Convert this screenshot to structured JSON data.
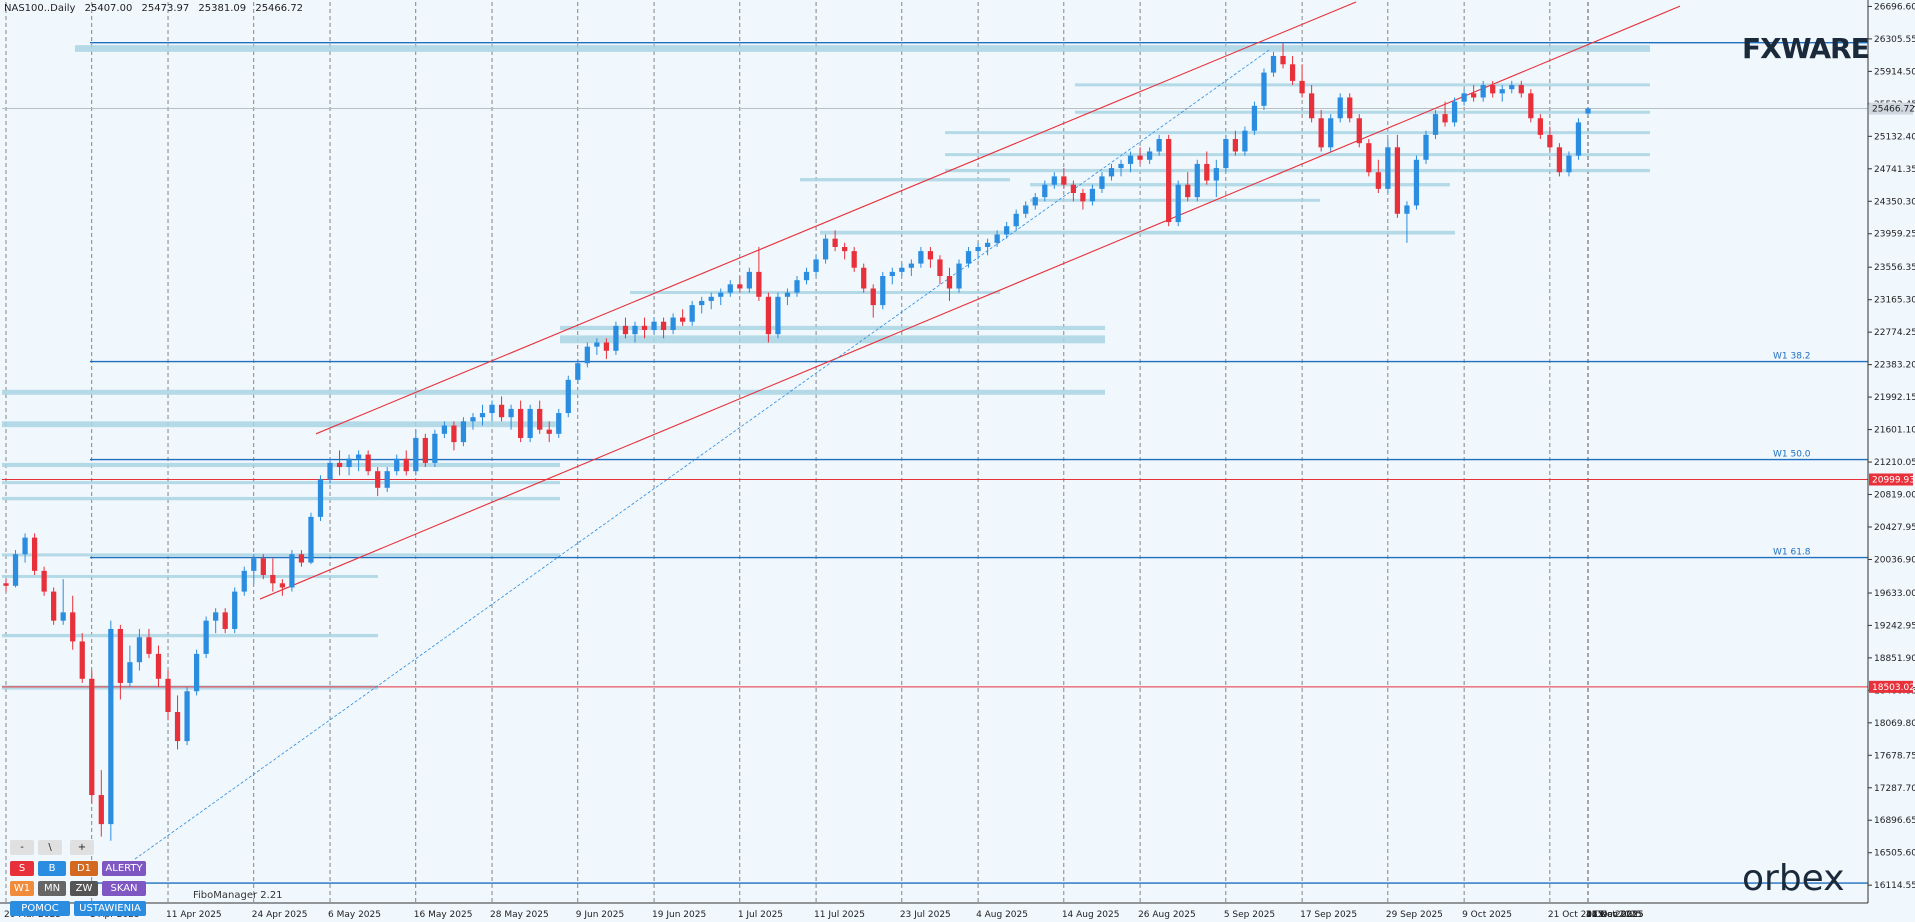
{
  "header": {
    "symbol": "NAS100..Daily",
    "ohlc": [
      "25407.00",
      "25473.97",
      "25381.09",
      "25466.72"
    ]
  },
  "brand_top": "FXWARE",
  "brand_bottom": "orbex",
  "fibo_label": "FiboManager 2.21",
  "buttons": [
    {
      "label": "-",
      "color": "#e0e0e0",
      "text": "#222"
    },
    {
      "label": "\\",
      "color": "#e0e0e0",
      "text": "#222"
    },
    {
      "label": "+",
      "color": "#e0e0e0",
      "text": "#222"
    },
    {
      "label": "S",
      "color": "#e8303a",
      "text": "#ffffff"
    },
    {
      "label": "B",
      "color": "#2a8de0",
      "text": "#ffffff"
    },
    {
      "label": "D1",
      "color": "#d2691e",
      "text": "#ffffff"
    },
    {
      "label": "ALERTY",
      "color": "#7e57c2",
      "text": "#ffffff"
    },
    {
      "label": "W1",
      "color": "#f08c3c",
      "text": "#ffffff"
    },
    {
      "label": "MN",
      "color": "#666666",
      "text": "#ffffff"
    },
    {
      "label": "ZW",
      "color": "#555555",
      "text": "#ffffff"
    },
    {
      "label": "SKAN",
      "color": "#7e57c2",
      "text": "#ffffff"
    },
    {
      "label": "POMOC",
      "color": "#2a8de0",
      "text": "#ffffff"
    },
    {
      "label": "USTAWIENIA",
      "color": "#2a8de0",
      "text": "#ffffff"
    }
  ],
  "colors": {
    "bull": "#2a8de0",
    "bear": "#e8303a",
    "zone": "#a9d4e3",
    "level": "#1f6fbf",
    "channel": "#e8303a",
    "grid": "#555555"
  },
  "chart_data": {
    "type": "candlestick",
    "ylim": [
      15900,
      26750
    ],
    "y_ticks": [
      "26696.60",
      "26305.55",
      "25914.50",
      "25523.45",
      "25132.40",
      "24741.35",
      "24350.30",
      "23959.25",
      "23556.35",
      "23165.30",
      "22774.25",
      "22383.20",
      "21992.15",
      "21601.10",
      "21210.05",
      "20819.00",
      "20427.95",
      "20036.90",
      "19633.00",
      "19242.95",
      "18851.90",
      "18460.85",
      "18069.80",
      "17678.75",
      "17287.70",
      "16896.65",
      "16505.60",
      "16114.55"
    ],
    "x_labels": [
      "20 Mar 2025",
      "1 Apr 2025",
      "11 Apr 2025",
      "24 Apr 2025",
      "6 May 2025",
      "16 May 2025",
      "28 May 2025",
      "9 Jun 2025",
      "19 Jun 2025",
      "1 Jul 2025",
      "11 Jul 2025",
      "23 Jul 2025",
      "4 Aug 2025",
      "14 Aug 2025",
      "26 Aug 2025",
      "5 Sep 2025",
      "17 Sep 2025",
      "29 Sep 2025",
      "9 Oct 2025",
      "21 Oct 2025",
      "31 Oct 2025",
      "12 Nov 2025",
      "24 Nov 2025",
      "4 Dec 2025",
      "16 Dec 2025"
    ],
    "candles": [
      [
        19750,
        19800,
        19650,
        19720
      ],
      [
        19720,
        20150,
        19700,
        20100
      ],
      [
        20100,
        20350,
        20000,
        20300
      ],
      [
        20300,
        20350,
        19850,
        19900
      ],
      [
        19900,
        19950,
        19600,
        19650
      ],
      [
        19650,
        19700,
        19250,
        19300
      ],
      [
        19300,
        19800,
        19250,
        19400
      ],
      [
        19400,
        19600,
        18950,
        19050
      ],
      [
        19050,
        19150,
        18550,
        18600
      ],
      [
        18600,
        18700,
        17100,
        17200
      ],
      [
        17200,
        17500,
        16700,
        16850
      ],
      [
        16850,
        19300,
        16650,
        19200
      ],
      [
        19200,
        19250,
        18350,
        18550
      ],
      [
        18550,
        19000,
        18500,
        18800
      ],
      [
        18800,
        19200,
        18700,
        19100
      ],
      [
        19100,
        19200,
        18850,
        18900
      ],
      [
        18900,
        19000,
        18500,
        18600
      ],
      [
        18600,
        18700,
        18100,
        18200
      ],
      [
        18200,
        18400,
        17750,
        17850
      ],
      [
        17850,
        18500,
        17800,
        18450
      ],
      [
        18450,
        18950,
        18400,
        18900
      ],
      [
        18900,
        19350,
        18850,
        19300
      ],
      [
        19300,
        19450,
        19150,
        19400
      ],
      [
        19400,
        19450,
        19150,
        19200
      ],
      [
        19200,
        19700,
        19150,
        19650
      ],
      [
        19650,
        19950,
        19600,
        19900
      ],
      [
        19900,
        20100,
        19750,
        20050
      ],
      [
        20050,
        20100,
        19800,
        19850
      ],
      [
        19850,
        20050,
        19650,
        19750
      ],
      [
        19750,
        19800,
        19600,
        19700
      ],
      [
        19700,
        20150,
        19650,
        20100
      ],
      [
        20100,
        20150,
        19950,
        20000
      ],
      [
        20000,
        20600,
        19980,
        20550
      ],
      [
        20550,
        21050,
        20500,
        21000
      ],
      [
        21000,
        21250,
        20950,
        21200
      ],
      [
        21200,
        21350,
        21050,
        21150
      ],
      [
        21150,
        21300,
        21050,
        21250
      ],
      [
        21250,
        21350,
        21100,
        21300
      ],
      [
        21300,
        21350,
        21050,
        21100
      ],
      [
        21100,
        21150,
        20800,
        20900
      ],
      [
        20900,
        21150,
        20850,
        21100
      ],
      [
        21100,
        21300,
        21050,
        21250
      ],
      [
        21250,
        21350,
        21050,
        21100
      ],
      [
        21100,
        21600,
        21050,
        21500
      ],
      [
        21500,
        21550,
        21150,
        21200
      ],
      [
        21200,
        21600,
        21150,
        21550
      ],
      [
        21550,
        21700,
        21500,
        21650
      ],
      [
        21650,
        21700,
        21350,
        21450
      ],
      [
        21450,
        21750,
        21400,
        21700
      ],
      [
        21700,
        21800,
        21600,
        21750
      ],
      [
        21750,
        21900,
        21650,
        21800
      ],
      [
        21800,
        21950,
        21700,
        21900
      ],
      [
        21900,
        22000,
        21700,
        21750
      ],
      [
        21750,
        21900,
        21600,
        21850
      ],
      [
        21850,
        21950,
        21450,
        21500
      ],
      [
        21500,
        21900,
        21450,
        21850
      ],
      [
        21850,
        21950,
        21550,
        21600
      ],
      [
        21600,
        21700,
        21450,
        21550
      ],
      [
        21550,
        21850,
        21500,
        21800
      ],
      [
        21800,
        22250,
        21750,
        22200
      ],
      [
        22200,
        22450,
        22150,
        22400
      ],
      [
        22400,
        22650,
        22350,
        22600
      ],
      [
        22600,
        22700,
        22500,
        22650
      ],
      [
        22650,
        22700,
        22450,
        22550
      ],
      [
        22550,
        22900,
        22500,
        22850
      ],
      [
        22850,
        22950,
        22700,
        22750
      ],
      [
        22750,
        22900,
        22650,
        22850
      ],
      [
        22850,
        22950,
        22700,
        22800
      ],
      [
        22800,
        22950,
        22750,
        22900
      ],
      [
        22900,
        22950,
        22700,
        22800
      ],
      [
        22800,
        23000,
        22750,
        22950
      ],
      [
        22950,
        23050,
        22850,
        22900
      ],
      [
        22900,
        23150,
        22850,
        23100
      ],
      [
        23100,
        23200,
        23000,
        23150
      ],
      [
        23150,
        23250,
        23050,
        23200
      ],
      [
        23200,
        23300,
        23100,
        23250
      ],
      [
        23250,
        23400,
        23200,
        23350
      ],
      [
        23350,
        23450,
        23250,
        23300
      ],
      [
        23300,
        23550,
        23250,
        23500
      ],
      [
        23500,
        23800,
        23150,
        23200
      ],
      [
        23200,
        23250,
        22650,
        22750
      ],
      [
        22750,
        23250,
        22700,
        23200
      ],
      [
        23200,
        23300,
        23100,
        23250
      ],
      [
        23250,
        23450,
        23200,
        23400
      ],
      [
        23400,
        23550,
        23350,
        23500
      ],
      [
        23500,
        23700,
        23450,
        23650
      ],
      [
        23650,
        23950,
        23600,
        23900
      ],
      [
        23900,
        24000,
        23750,
        23800
      ],
      [
        23800,
        23850,
        23650,
        23750
      ],
      [
        23750,
        23800,
        23500,
        23550
      ],
      [
        23550,
        23600,
        23250,
        23300
      ],
      [
        23300,
        23350,
        22950,
        23100
      ],
      [
        23100,
        23500,
        23050,
        23450
      ],
      [
        23450,
        23550,
        23350,
        23500
      ],
      [
        23500,
        23600,
        23450,
        23550
      ],
      [
        23550,
        23650,
        23450,
        23600
      ],
      [
        23600,
        23800,
        23550,
        23750
      ],
      [
        23750,
        23800,
        23550,
        23650
      ],
      [
        23650,
        23700,
        23350,
        23450
      ],
      [
        23450,
        23550,
        23150,
        23300
      ],
      [
        23300,
        23650,
        23250,
        23600
      ],
      [
        23600,
        23800,
        23550,
        23750
      ],
      [
        23750,
        23850,
        23650,
        23800
      ],
      [
        23800,
        23900,
        23700,
        23850
      ],
      [
        23850,
        24000,
        23800,
        23950
      ],
      [
        23950,
        24100,
        23900,
        24050
      ],
      [
        24050,
        24250,
        24000,
        24200
      ],
      [
        24200,
        24350,
        24150,
        24300
      ],
      [
        24300,
        24450,
        24250,
        24400
      ],
      [
        24400,
        24600,
        24350,
        24550
      ],
      [
        24550,
        24700,
        24500,
        24650
      ],
      [
        24650,
        24750,
        24500,
        24550
      ],
      [
        24550,
        24600,
        24350,
        24450
      ],
      [
        24450,
        24500,
        24250,
        24350
      ],
      [
        24350,
        24550,
        24300,
        24500
      ],
      [
        24500,
        24700,
        24450,
        24650
      ],
      [
        24650,
        24800,
        24600,
        24750
      ],
      [
        24750,
        24850,
        24650,
        24800
      ],
      [
        24800,
        24950,
        24700,
        24900
      ],
      [
        24900,
        25000,
        24800,
        24850
      ],
      [
        24850,
        25000,
        24800,
        24950
      ],
      [
        24950,
        25150,
        24900,
        25100
      ],
      [
        25100,
        25150,
        24050,
        24100
      ],
      [
        24100,
        24600,
        24050,
        24550
      ],
      [
        24550,
        24700,
        24350,
        24400
      ],
      [
        24400,
        24850,
        24350,
        24800
      ],
      [
        24800,
        24950,
        24550,
        24600
      ],
      [
        24600,
        24850,
        24400,
        24750
      ],
      [
        24750,
        25150,
        24700,
        25100
      ],
      [
        25100,
        25200,
        24900,
        24950
      ],
      [
        24950,
        25250,
        24900,
        25200
      ],
      [
        25200,
        25550,
        25150,
        25500
      ],
      [
        25500,
        25950,
        25450,
        25900
      ],
      [
        25900,
        26150,
        25850,
        26100
      ],
      [
        26100,
        26250,
        25950,
        26000
      ],
      [
        26000,
        26100,
        25750,
        25800
      ],
      [
        25800,
        26000,
        25600,
        25650
      ],
      [
        25650,
        25750,
        25300,
        25350
      ],
      [
        25350,
        25450,
        24950,
        25000
      ],
      [
        25000,
        25400,
        24950,
        25350
      ],
      [
        25350,
        25650,
        25300,
        25600
      ],
      [
        25600,
        25650,
        25300,
        25350
      ],
      [
        25350,
        25400,
        25000,
        25050
      ],
      [
        25050,
        25100,
        24650,
        24700
      ],
      [
        24700,
        24850,
        24450,
        24500
      ],
      [
        24500,
        25100,
        24450,
        25000
      ],
      [
        25000,
        25150,
        24150,
        24200
      ],
      [
        24200,
        24350,
        23850,
        24300
      ],
      [
        24300,
        24900,
        24250,
        24850
      ],
      [
        24850,
        25200,
        24800,
        25150
      ],
      [
        25150,
        25450,
        25100,
        25400
      ],
      [
        25400,
        25550,
        25250,
        25300
      ],
      [
        25300,
        25600,
        25250,
        25550
      ],
      [
        25550,
        25700,
        25500,
        25650
      ],
      [
        25650,
        25750,
        25550,
        25600
      ],
      [
        25600,
        25800,
        25550,
        25750
      ],
      [
        25750,
        25800,
        25600,
        25650
      ],
      [
        25650,
        25750,
        25550,
        25700
      ],
      [
        25700,
        25800,
        25650,
        25750
      ],
      [
        25750,
        25800,
        25600,
        25650
      ],
      [
        25650,
        25700,
        25300,
        25350
      ],
      [
        25350,
        25400,
        25100,
        25150
      ],
      [
        25150,
        25250,
        24950,
        25000
      ],
      [
        25000,
        25050,
        24650,
        24700
      ],
      [
        24700,
        24950,
        24650,
        24900
      ],
      [
        24900,
        25350,
        24850,
        25300
      ],
      [
        25407,
        25474,
        25381,
        25467
      ]
    ]
  }
}
